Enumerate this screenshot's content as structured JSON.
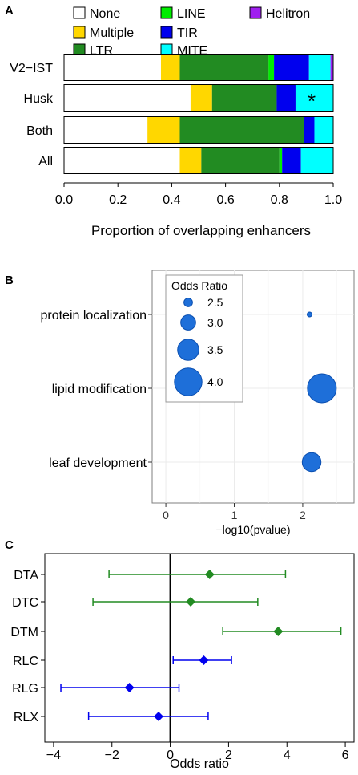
{
  "panels": [
    {
      "label": "A"
    },
    {
      "label": "B"
    },
    {
      "label": "C"
    }
  ],
  "chart_data": [
    {
      "type": "bar",
      "orientation": "horizontal",
      "stacked": true,
      "categories": [
        "V2−IST",
        "Husk",
        "Both",
        "All"
      ],
      "series": [
        {
          "name": "None",
          "color": "#ffffff",
          "values": [
            0.36,
            0.47,
            0.31,
            0.43
          ]
        },
        {
          "name": "Multiple",
          "color": "#ffd700",
          "values": [
            0.07,
            0.08,
            0.12,
            0.08
          ]
        },
        {
          "name": "LTR",
          "color": "#228b22",
          "values": [
            0.33,
            0.24,
            0.46,
            0.29
          ]
        },
        {
          "name": "LINE",
          "color": "#00ee00",
          "values": [
            0.02,
            0.0,
            0.0,
            0.01
          ]
        },
        {
          "name": "TIR",
          "color": "#0000ee",
          "values": [
            0.13,
            0.07,
            0.04,
            0.07
          ]
        },
        {
          "name": "MITE",
          "color": "#00ffff",
          "values": [
            0.08,
            0.14,
            0.07,
            0.12
          ]
        },
        {
          "name": "Helitron",
          "color": "#a020f0",
          "values": [
            0.01,
            0.0,
            0.0,
            0.0
          ]
        }
      ],
      "annotations": [
        {
          "category": "Husk",
          "text": "*"
        }
      ],
      "xlabel": "Proportion of overlapping enhancers",
      "xlim": [
        0.0,
        1.0
      ],
      "xticks": [
        "0.0",
        "0.2",
        "0.4",
        "0.6",
        "0.8",
        "1.0"
      ],
      "legend_position": "top"
    },
    {
      "type": "scatter",
      "categories": [
        "protein localization",
        "lipid modification",
        "leaf development"
      ],
      "x": [
        2.1,
        2.28,
        2.13
      ],
      "size_values": [
        2.2,
        4.1,
        3.3
      ],
      "xlabel": "−log10(pvalue)",
      "xlim": [
        -0.2,
        2.75
      ],
      "xticks": [
        "0",
        "1",
        "2"
      ],
      "legend_title": "Odds Ratio",
      "legend_sizes": [
        "2.5",
        "3.0",
        "3.5",
        "4.0"
      ],
      "point_color": "#1e6fd9",
      "grid": true,
      "legend_position": "top-left"
    },
    {
      "type": "forest",
      "categories": [
        "DTA",
        "DTC",
        "DTM",
        "RLC",
        "RLG",
        "RLX"
      ],
      "estimate": [
        1.35,
        0.7,
        3.7,
        1.15,
        -1.4,
        -0.4
      ],
      "lower": [
        -2.1,
        -2.65,
        1.8,
        0.1,
        -3.75,
        -2.8
      ],
      "upper": [
        3.95,
        3.0,
        5.85,
        2.1,
        0.3,
        1.3
      ],
      "colors": [
        "#228b22",
        "#228b22",
        "#228b22",
        "#0000ee",
        "#0000ee",
        "#0000ee"
      ],
      "xlabel": "Odds ratio",
      "xlim": [
        -4.3,
        6.3
      ],
      "xticks": [
        "−4",
        "−2",
        "0",
        "2",
        "4",
        "6"
      ],
      "reference_line": 0
    }
  ]
}
